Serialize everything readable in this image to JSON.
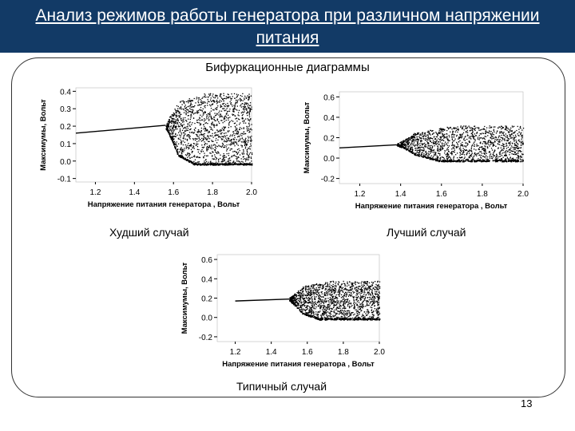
{
  "header": {
    "title": "Анализ режимов работы генератора при различном напряжении питания"
  },
  "subtitle": "Бифуркационные диаграммы",
  "captions": {
    "worst": "Худший случай",
    "best": "Лучший случай",
    "typical": "Типичный случай"
  },
  "page_number": "13",
  "colors": {
    "header_bg": "#123a66",
    "points": "#000000"
  },
  "chart_data": [
    {
      "id": "worst",
      "type": "scatter",
      "xlabel": "Напряжение питания генератора , Вольт",
      "ylabel": "Максимумы, Вольт",
      "xlim": [
        1.1,
        2.0
      ],
      "ylim": [
        -0.12,
        0.42
      ],
      "xticks": [
        "1.2",
        "1.4",
        "1.6",
        "1.8",
        "2.0"
      ],
      "xtick_values": [
        1.2,
        1.4,
        1.6,
        1.8,
        2.0
      ],
      "yticks": [
        "-0.1",
        "0.0",
        "0.1",
        "0.2",
        "0.3",
        "0.4"
      ],
      "ytick_values": [
        -0.1,
        0.0,
        0.1,
        0.2,
        0.3,
        0.4
      ],
      "period_one": {
        "x": [
          1.1,
          1.56
        ],
        "y": [
          0.16,
          0.205
        ]
      },
      "chaos_band": {
        "x": [
          1.56,
          2.0
        ],
        "upper_y": [
          0.32,
          0.39
        ],
        "lower_y": [
          0.07,
          -0.02
        ]
      }
    },
    {
      "id": "best",
      "type": "scatter",
      "xlabel": "Напряжение питания генератора , Вольт",
      "ylabel": "Максимумы, Вольт",
      "xlim": [
        1.1,
        2.0
      ],
      "ylim": [
        -0.25,
        0.65
      ],
      "xticks": [
        "1.2",
        "1.4",
        "1.6",
        "1.8",
        "2.0"
      ],
      "xtick_values": [
        1.2,
        1.4,
        1.6,
        1.8,
        2.0
      ],
      "yticks": [
        "-0.2",
        "0.0",
        "0.2",
        "0.4",
        "0.6"
      ],
      "ytick_values": [
        -0.2,
        0.0,
        0.2,
        0.4,
        0.6
      ],
      "period_one": {
        "x": [
          1.1,
          1.38
        ],
        "y": [
          0.1,
          0.13
        ]
      },
      "chaos_band": {
        "x": [
          1.38,
          2.0
        ],
        "upper_y": [
          0.22,
          0.32
        ],
        "lower_y": [
          0.08,
          -0.03
        ]
      }
    },
    {
      "id": "typical",
      "type": "scatter",
      "xlabel": "Напряжение питания генератора , Вольт",
      "ylabel": "Максимумы, Вольт",
      "xlim": [
        1.1,
        2.0
      ],
      "ylim": [
        -0.25,
        0.65
      ],
      "xticks": [
        "1.2",
        "1.4",
        "1.6",
        "1.8",
        "2.0"
      ],
      "xtick_values": [
        1.2,
        1.4,
        1.6,
        1.8,
        2.0
      ],
      "yticks": [
        "-0.2",
        "0.0",
        "0.2",
        "0.4",
        "0.6"
      ],
      "ytick_values": [
        -0.2,
        0.0,
        0.2,
        0.4,
        0.6
      ],
      "period_one": {
        "x": [
          1.2,
          1.5
        ],
        "y": [
          0.17,
          0.19
        ]
      },
      "chaos_band": {
        "x": [
          1.5,
          2.0
        ],
        "upper_y": [
          0.3,
          0.38
        ],
        "lower_y": [
          0.08,
          -0.02
        ]
      }
    }
  ]
}
